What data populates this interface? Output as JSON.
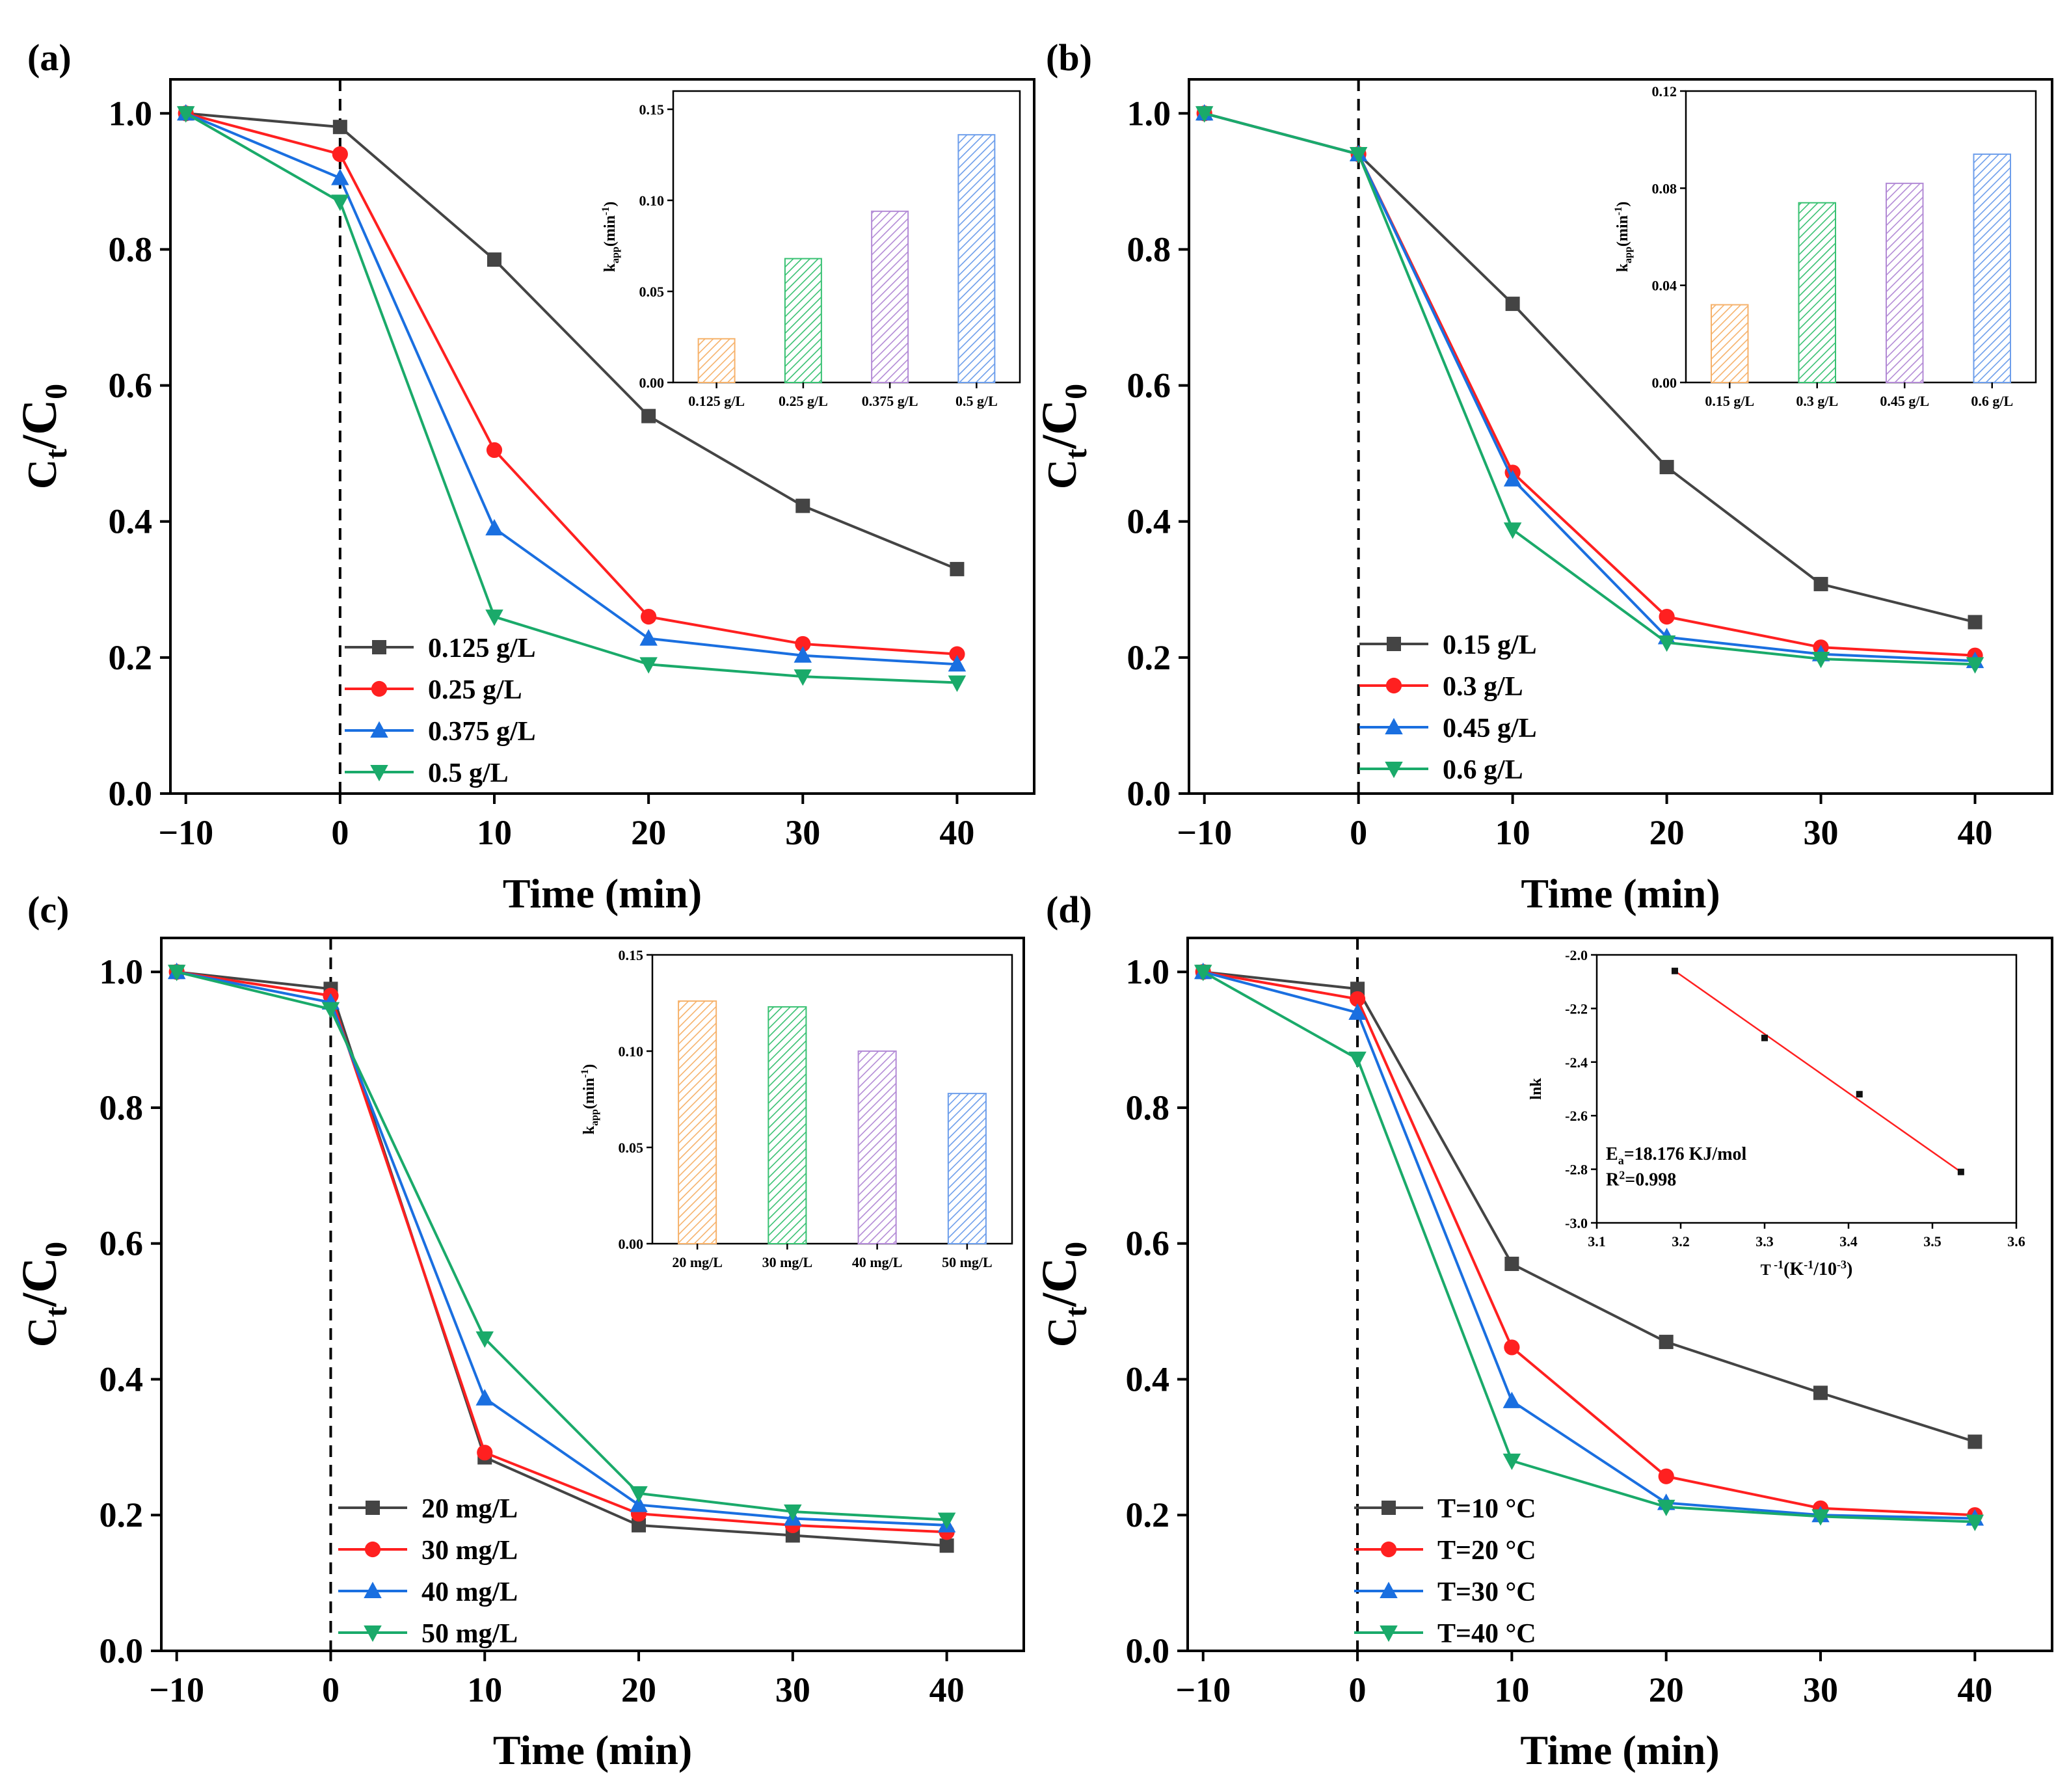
{
  "figure": {
    "domain": "Chart"
  },
  "chart_data": [
    {
      "panel": "(a)",
      "type": "line",
      "xlabel": "Time (min)",
      "ylabel": "Ct/C0",
      "ylabel_main": "C",
      "ylabel_sub1": "t",
      "ylabel_mid": "/C",
      "ylabel_sub2": "0",
      "xlim": [
        -11,
        45
      ],
      "ylim": [
        0,
        1.05
      ],
      "xticks": [
        -10,
        0,
        10,
        20,
        30,
        40
      ],
      "yticks": [
        0.0,
        0.2,
        0.4,
        0.6,
        0.8,
        1.0
      ],
      "dashed_vline_x": 0,
      "x": [
        -10,
        0,
        10,
        20,
        30,
        40
      ],
      "series": [
        {
          "name": "0.125 g/L",
          "color": "#444444",
          "marker": "square",
          "values": [
            1.0,
            0.98,
            0.785,
            0.555,
            0.423,
            0.33
          ]
        },
        {
          "name": "0.25 g/L",
          "color": "#ff2020",
          "marker": "circle",
          "values": [
            1.0,
            0.94,
            0.505,
            0.26,
            0.22,
            0.205
          ]
        },
        {
          "name": "0.375 g/L",
          "color": "#1a6fe0",
          "marker": "triangle-up",
          "values": [
            1.0,
            0.905,
            0.39,
            0.228,
            0.203,
            0.19
          ]
        },
        {
          "name": "0.5 g/L",
          "color": "#1aaa6a",
          "marker": "triangle-down",
          "values": [
            1.0,
            0.87,
            0.26,
            0.19,
            0.172,
            0.163
          ]
        }
      ],
      "inset": {
        "type": "bar",
        "ylabel": "kapp(min-1)",
        "ylabel_main": "k",
        "ylabel_sub": "app",
        "ylabel_mid": "(min",
        "ylabel_sup": "-1",
        "ylabel_end": ")",
        "ylim": [
          0,
          0.16
        ],
        "yticks": [
          0.0,
          0.05,
          0.1,
          0.15
        ],
        "ytick_labels": [
          "0.00",
          "0.05",
          "0.10",
          "0.15"
        ],
        "categories": [
          "0.125 g/L",
          "0.25 g/L",
          "0.375 g/L",
          "0.5 g/L"
        ],
        "values": [
          0.024,
          0.068,
          0.094,
          0.136
        ],
        "colors": [
          "#f6b26b",
          "#38c172",
          "#b38bd6",
          "#6d9eeb"
        ]
      }
    },
    {
      "panel": "(b)",
      "type": "line",
      "xlabel": "Time (min)",
      "ylabel": "Ct/C0",
      "ylabel_main": "C",
      "ylabel_sub1": "t",
      "ylabel_mid": "/C",
      "ylabel_sub2": "0",
      "xlim": [
        -11,
        45
      ],
      "ylim": [
        0,
        1.05
      ],
      "xticks": [
        -10,
        0,
        10,
        20,
        30,
        40
      ],
      "yticks": [
        0.0,
        0.2,
        0.4,
        0.6,
        0.8,
        1.0
      ],
      "dashed_vline_x": 0,
      "x": [
        -10,
        0,
        10,
        20,
        30,
        40
      ],
      "series": [
        {
          "name": "0.15 g/L",
          "color": "#444444",
          "marker": "square",
          "values": [
            1.0,
            0.94,
            0.72,
            0.48,
            0.308,
            0.252
          ]
        },
        {
          "name": "0.3 g/L",
          "color": "#ff2020",
          "marker": "circle",
          "values": [
            1.0,
            0.94,
            0.472,
            0.26,
            0.215,
            0.203
          ]
        },
        {
          "name": "0.45 g/L",
          "color": "#1a6fe0",
          "marker": "triangle-up",
          "values": [
            1.0,
            0.94,
            0.462,
            0.23,
            0.205,
            0.195
          ]
        },
        {
          "name": "0.6 g/L",
          "color": "#1aaa6a",
          "marker": "triangle-down",
          "values": [
            1.0,
            0.94,
            0.388,
            0.222,
            0.198,
            0.19
          ]
        }
      ],
      "inset": {
        "type": "bar",
        "ylabel": "kapp(min-1)",
        "ylabel_main": "k",
        "ylabel_sub": "app",
        "ylabel_mid": "(min",
        "ylabel_sup": "-1",
        "ylabel_end": ")",
        "ylim": [
          0,
          0.12
        ],
        "yticks": [
          0.0,
          0.04,
          0.08,
          0.12
        ],
        "ytick_labels": [
          "0.00",
          "0.04",
          "0.08",
          "0.12"
        ],
        "categories": [
          "0.15 g/L",
          "0.3 g/L",
          "0.45 g/L",
          "0.6 g/L"
        ],
        "values": [
          0.032,
          0.074,
          0.082,
          0.094
        ],
        "colors": [
          "#f6b26b",
          "#38c172",
          "#b38bd6",
          "#6d9eeb"
        ]
      }
    },
    {
      "panel": "(c)",
      "type": "line",
      "xlabel": "Time (min)",
      "ylabel": "Ct/C0",
      "ylabel_main": "C",
      "ylabel_sub1": "t",
      "ylabel_mid": "/C",
      "ylabel_sub2": "0",
      "xlim": [
        -11,
        45
      ],
      "ylim": [
        0,
        1.05
      ],
      "xticks": [
        -10,
        0,
        10,
        20,
        30,
        40
      ],
      "yticks": [
        0.0,
        0.2,
        0.4,
        0.6,
        0.8,
        1.0
      ],
      "dashed_vline_x": 0,
      "x": [
        -10,
        0,
        10,
        20,
        30,
        40
      ],
      "series": [
        {
          "name": "20 mg/L",
          "color": "#444444",
          "marker": "square",
          "values": [
            1.0,
            0.975,
            0.285,
            0.185,
            0.17,
            0.155
          ]
        },
        {
          "name": "30 mg/L",
          "color": "#ff2020",
          "marker": "circle",
          "values": [
            1.0,
            0.965,
            0.292,
            0.202,
            0.185,
            0.175
          ]
        },
        {
          "name": "40 mg/L",
          "color": "#1a6fe0",
          "marker": "triangle-up",
          "values": [
            1.0,
            0.955,
            0.372,
            0.215,
            0.195,
            0.185
          ]
        },
        {
          "name": "50 mg/L",
          "color": "#1aaa6a",
          "marker": "triangle-down",
          "values": [
            1.0,
            0.945,
            0.46,
            0.232,
            0.205,
            0.193
          ]
        }
      ],
      "inset": {
        "type": "bar",
        "ylabel": "kapp(min-1)",
        "ylabel_main": "k",
        "ylabel_sub": "app",
        "ylabel_mid": "(min",
        "ylabel_sup": "-1",
        "ylabel_end": ")",
        "ylim": [
          0,
          0.15
        ],
        "yticks": [
          0.0,
          0.05,
          0.1,
          0.15
        ],
        "ytick_labels": [
          "0.00",
          "0.05",
          "0.10",
          "0.15"
        ],
        "categories": [
          "20 mg/L",
          "30 mg/L",
          "40 mg/L",
          "50 mg/L"
        ],
        "values": [
          0.126,
          0.123,
          0.1,
          0.078
        ],
        "colors": [
          "#f6b26b",
          "#38c172",
          "#b38bd6",
          "#6d9eeb"
        ]
      }
    },
    {
      "panel": "(d)",
      "type": "line",
      "xlabel": "Time (min)",
      "ylabel": "Ct/C0",
      "ylabel_main": "C",
      "ylabel_sub1": "t",
      "ylabel_mid": "/C",
      "ylabel_sub2": "0",
      "xlim": [
        -11,
        45
      ],
      "ylim": [
        0,
        1.05
      ],
      "xticks": [
        -10,
        0,
        10,
        20,
        30,
        40
      ],
      "yticks": [
        0.0,
        0.2,
        0.4,
        0.6,
        0.8,
        1.0
      ],
      "dashed_vline_x": 0,
      "x": [
        -10,
        0,
        10,
        20,
        30,
        40
      ],
      "series": [
        {
          "name": "T=10 °C",
          "color": "#444444",
          "marker": "square",
          "values": [
            1.0,
            0.975,
            0.57,
            0.455,
            0.38,
            0.308
          ]
        },
        {
          "name": "T=20 °C",
          "color": "#ff2020",
          "marker": "circle",
          "values": [
            1.0,
            0.96,
            0.447,
            0.257,
            0.21,
            0.2
          ]
        },
        {
          "name": "T=30 °C",
          "color": "#1a6fe0",
          "marker": "triangle-up",
          "values": [
            1.0,
            0.94,
            0.368,
            0.218,
            0.2,
            0.195
          ]
        },
        {
          "name": "T=40 °C",
          "color": "#1aaa6a",
          "marker": "triangle-down",
          "values": [
            1.0,
            0.872,
            0.28,
            0.212,
            0.198,
            0.19
          ]
        }
      ],
      "inset": {
        "type": "scatter",
        "xlabel": "T-1(K-1/10-3)",
        "xlabel_a": "T",
        "xlabel_b": " -1",
        "xlabel_c": "(K",
        "xlabel_d": "-1",
        "xlabel_e": "/10",
        "xlabel_f": "-3",
        "xlabel_g": ")",
        "ylabel": "lnk",
        "xlim": [
          3.1,
          3.6
        ],
        "ylim": [
          -3.0,
          -2.0
        ],
        "xticks": [
          3.1,
          3.2,
          3.3,
          3.4,
          3.5,
          3.6
        ],
        "xtick_labels": [
          "3.1",
          "3.2",
          "3.3",
          "3.4",
          "3.5",
          "3.6"
        ],
        "yticks": [
          -3.0,
          -2.8,
          -2.6,
          -2.4,
          -2.2,
          -2.0
        ],
        "ytick_labels": [
          "-3.0",
          "-2.8",
          "-2.6",
          "-2.4",
          "-2.2",
          "-2.0"
        ],
        "x": [
          3.193,
          3.3,
          3.413,
          3.534
        ],
        "values": [
          -2.06,
          -2.31,
          -2.52,
          -2.81
        ],
        "fit_line": {
          "x": [
            3.193,
            3.534
          ],
          "y": [
            -2.06,
            -2.81
          ],
          "color": "#ff2020"
        },
        "annotation_ea_a": "E",
        "annotation_ea_b": "a",
        "annotation_ea_c": "=18.176 KJ/mol",
        "annotation_r2_a": "R",
        "annotation_r2_b": "2",
        "annotation_r2_c": "=0.998"
      }
    }
  ]
}
